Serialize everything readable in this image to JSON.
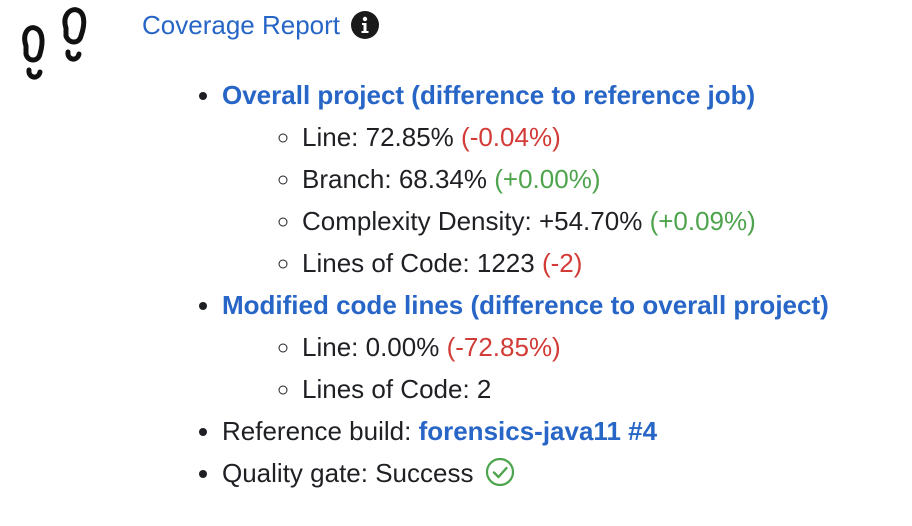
{
  "header": {
    "title": "Coverage Report",
    "icon": "info-icon",
    "logo_icon": "footprints-icon",
    "accent_color": "#2766c6"
  },
  "overall": {
    "title": "Overall project (difference to reference job)",
    "items": [
      {
        "label": "Line: 72.85%",
        "delta": "(-0.04%)",
        "delta_status": "negative"
      },
      {
        "label": "Branch: 68.34%",
        "delta": "(+0.00%)",
        "delta_status": "positive"
      },
      {
        "label": "Complexity Density: +54.70%",
        "delta": "(+0.09%)",
        "delta_status": "positive"
      },
      {
        "label": "Lines of Code: 1223",
        "delta": "(-2)",
        "delta_status": "negative"
      }
    ]
  },
  "modified": {
    "title": "Modified code lines (difference to overall project)",
    "items": [
      {
        "label": "Line: 0.00%",
        "delta": "(-72.85%)",
        "delta_status": "negative"
      },
      {
        "label": "Lines of Code: 2",
        "delta": "",
        "delta_status": "none"
      }
    ]
  },
  "reference": {
    "label": "Reference build: ",
    "link": "forensics-java11 #4"
  },
  "quality_gate": {
    "label": "Quality gate: Success",
    "icon": "check-circle-icon",
    "status_color": "#4ea44d"
  },
  "colors": {
    "negative": "#d23b36",
    "positive": "#4ea44d",
    "link": "#2766c6"
  }
}
